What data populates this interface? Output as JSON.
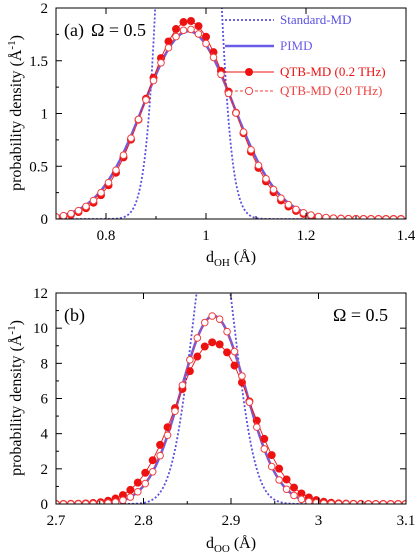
{
  "colors": {
    "standard": "#5a50e0",
    "pimd": "#6a5ce8",
    "qtb_low": "#ee1111",
    "qtb_high": "#f04040",
    "axis": "#000000"
  },
  "legend": {
    "standard": "Standard-MD",
    "pimd": "PIMD",
    "qtb_low": "QTB-MD (0.2 THz)",
    "qtb_high": "QTB-MD (20 THz)"
  },
  "chart_data": [
    {
      "type": "line",
      "panel_label": "(a)",
      "annotation": "Ω = 0.5",
      "xlabel_main": "d",
      "xlabel_sub": "OH",
      "xlabel_unit": " (Å)",
      "ylabel_main": "probability density (Å",
      "ylabel_sup": "-1",
      "ylabel_end": ")",
      "xlim": [
        0.7,
        1.4
      ],
      "ylim": [
        0,
        2
      ],
      "xticks": [
        0.8,
        1.0,
        1.2,
        1.4
      ],
      "xtick_labels": [
        "0.8",
        "1",
        "1.2",
        "1.4"
      ],
      "yticks": [
        0,
        0.5,
        1.0,
        1.5,
        2.0
      ],
      "ytick_labels": [
        "0",
        "0.5",
        "1",
        "1.5",
        "2"
      ],
      "legend_position": "top-right",
      "series": [
        {
          "name": "Standard-MD",
          "style": "dotted",
          "mean": 0.965,
          "sigma": 0.036,
          "amplitude": 11.1
        },
        {
          "name": "PIMD",
          "style": "solid",
          "mean": 0.965,
          "sigma": 0.09,
          "amplitude": 1.78
        },
        {
          "name": "QTB-MD (0.2 THz)",
          "style": "filled-markers",
          "mean": 0.965,
          "sigma": 0.085,
          "amplitude": 1.88,
          "x_start": 0.7,
          "x_end": 1.4,
          "x_step": 0.015
        },
        {
          "name": "QTB-MD (20 THz)",
          "style": "open-markers",
          "mean": 0.965,
          "sigma": 0.088,
          "amplitude": 1.8,
          "x_start": 0.7,
          "x_end": 1.4,
          "x_step": 0.015
        }
      ]
    },
    {
      "type": "line",
      "panel_label": "(b)",
      "annotation": "Ω = 0.5",
      "xlabel_main": "d",
      "xlabel_sub": "OO",
      "xlabel_unit": " (Å)",
      "ylabel_main": "probability density (Å",
      "ylabel_sup": "-1",
      "ylabel_end": ")",
      "xlim": [
        2.7,
        3.1
      ],
      "ylim": [
        0,
        12
      ],
      "xticks": [
        2.7,
        2.8,
        2.9,
        3.0,
        3.1
      ],
      "xtick_labels": [
        "2.7",
        "2.8",
        "2.9",
        "3",
        "3.1"
      ],
      "yticks": [
        0,
        2,
        4,
        6,
        8,
        10,
        12
      ],
      "ytick_labels": [
        "0",
        "2",
        "4",
        "6",
        "8",
        "10",
        "12"
      ],
      "series": [
        {
          "name": "Standard-MD",
          "style": "dotted",
          "mean": 2.88,
          "sigma": 0.024,
          "amplitude": 16.6
        },
        {
          "name": "PIMD",
          "style": "solid",
          "mean": 2.88,
          "sigma": 0.037,
          "amplitude": 10.7
        },
        {
          "name": "QTB-MD (0.2 THz)",
          "style": "filled-markers",
          "mean": 2.88,
          "sigma": 0.043,
          "amplitude": 9.2,
          "x_start": 2.7,
          "x_end": 3.1,
          "x_step": 0.0085
        },
        {
          "name": "QTB-MD (20 THz)",
          "style": "open-markers",
          "mean": 2.88,
          "sigma": 0.037,
          "amplitude": 10.7,
          "x_start": 2.7,
          "x_end": 3.1,
          "x_step": 0.0085
        }
      ]
    }
  ]
}
